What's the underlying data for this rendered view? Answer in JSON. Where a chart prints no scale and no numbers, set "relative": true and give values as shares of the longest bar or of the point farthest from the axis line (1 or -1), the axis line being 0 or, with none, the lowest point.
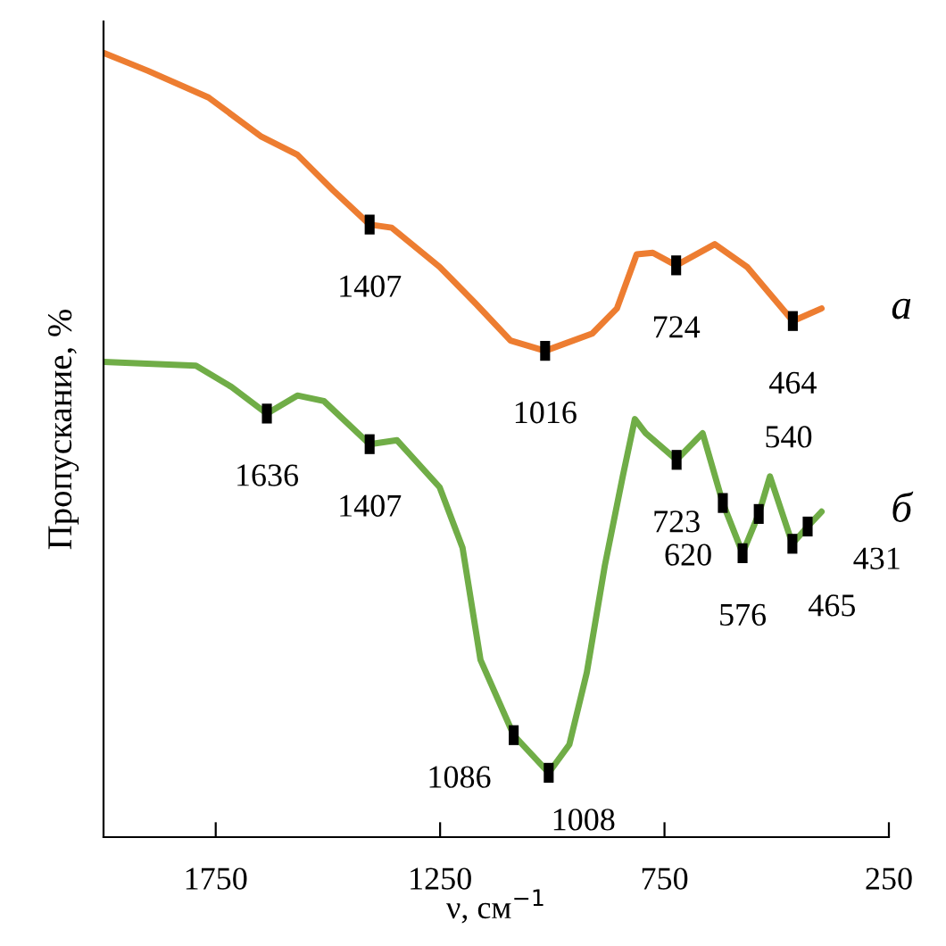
{
  "chart_data": {
    "type": "line",
    "relative": true,
    "xlabel": "ν, см$^{−1}$",
    "ylabel": "Пропускание, %",
    "xlim": [
      2000,
      250
    ],
    "xticks": [
      1750,
      1250,
      750,
      250
    ],
    "grid": false,
    "legend": false,
    "marker": "none",
    "line_style": "solid",
    "series": [
      {
        "name": "а",
        "color": "#ed7d31",
        "x": [
          2000,
          1901,
          1766,
          1648,
          1568,
          1489,
          1407,
          1358,
          1251,
          1172,
          1093,
          1016,
          911,
          856,
          812,
          776,
          724,
          638,
          566,
          464,
          400
        ],
        "values": [
          1.0,
          0.977,
          0.943,
          0.893,
          0.87,
          0.825,
          0.781,
          0.777,
          0.727,
          0.681,
          0.633,
          0.62,
          0.642,
          0.674,
          0.743,
          0.745,
          0.729,
          0.756,
          0.727,
          0.658,
          0.674
        ]
      },
      {
        "name": "б",
        "color": "#70ad47",
        "x": [
          2000,
          1794,
          1715,
          1636,
          1568,
          1509,
          1407,
          1346,
          1251,
          1200,
          1160,
          1086,
          1008,
          962,
          923,
          883,
          843,
          816,
          792,
          723,
          665,
          620,
          576,
          540,
          515,
          465,
          431,
          400
        ],
        "values": [
          0.606,
          0.601,
          0.574,
          0.54,
          0.563,
          0.556,
          0.501,
          0.506,
          0.446,
          0.369,
          0.226,
          0.13,
          0.082,
          0.118,
          0.21,
          0.346,
          0.46,
          0.533,
          0.515,
          0.481,
          0.515,
          0.426,
          0.362,
          0.412,
          0.46,
          0.374,
          0.396,
          0.415
        ]
      }
    ],
    "annotations": [
      {
        "text": "1407",
        "x": 1407,
        "y": 0.781
      },
      {
        "text": "1016",
        "x": 1016,
        "y": 0.62
      },
      {
        "text": "724",
        "x": 724,
        "y": 0.729
      },
      {
        "text": "464",
        "x": 464,
        "y": 0.658
      },
      {
        "text": "1636",
        "x": 1636,
        "y": 0.54
      },
      {
        "text": "1407",
        "x": 1407,
        "y": 0.501
      },
      {
        "text": "1086",
        "x": 1086,
        "y": 0.13
      },
      {
        "text": "1008",
        "x": 1008,
        "y": 0.082
      },
      {
        "text": "723",
        "x": 723,
        "y": 0.481
      },
      {
        "text": "620",
        "x": 620,
        "y": 0.426
      },
      {
        "text": "576",
        "x": 576,
        "y": 0.362
      },
      {
        "text": "540",
        "x": 540,
        "y": 0.412
      },
      {
        "text": "465",
        "x": 465,
        "y": 0.374
      },
      {
        "text": "431",
        "x": 431,
        "y": 0.396
      }
    ]
  }
}
